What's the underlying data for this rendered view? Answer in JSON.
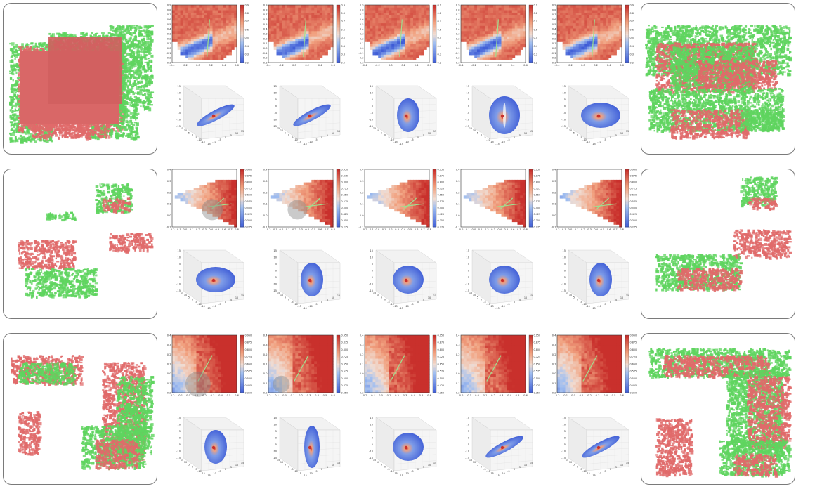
{
  "colors": {
    "red_points": "#e06a6a",
    "green_points": "#5fd45f",
    "heat_high": "#c9302c",
    "heat_mid": "#f1a17f",
    "heat_low": "#3d5bd6",
    "trajectory": "#9fe08f"
  },
  "rows": [
    {
      "cbar_ticks": [
        "0.9",
        "0.8",
        "0.7",
        "0.6",
        "0.5",
        "0.4",
        "0.3",
        "0.2"
      ],
      "y_ticks": [
        "0.9",
        "0.8",
        "0.7",
        "0.6",
        "0.5",
        "0.4",
        "0.3",
        "0.2",
        "0.1",
        "0.0",
        "-0.1",
        "-0.2",
        "-0.3"
      ],
      "x_ticks": [
        "-0.4",
        "-0.2",
        "0.0",
        "0.2",
        "0.4",
        "0.6"
      ],
      "ellipsoids": [
        {
          "shape": "flat-diagonal"
        },
        {
          "shape": "flat-diagonal"
        },
        {
          "shape": "tall-oval"
        },
        {
          "shape": "round-vertical-streak"
        },
        {
          "shape": "wide-oval"
        }
      ]
    },
    {
      "cbar_ticks": [
        "0.950",
        "0.875",
        "0.800",
        "0.725",
        "0.650",
        "0.575",
        "0.500",
        "0.425",
        "0.350",
        "0.275"
      ],
      "y_ticks": [
        "0.4",
        "0.3",
        "0.2",
        "0.1",
        "0.0",
        "-0.1"
      ],
      "x_ticks": [
        "-0.2",
        "-0.1",
        "0.0",
        "0.1",
        "0.2",
        "0.3",
        "0.4",
        "0.5",
        "0.6",
        "0.7",
        "0.8"
      ],
      "ellipsoids": [
        {
          "shape": "wide-oval"
        },
        {
          "shape": "tall-oval"
        },
        {
          "shape": "round"
        },
        {
          "shape": "round"
        },
        {
          "shape": "tall-oval"
        }
      ]
    },
    {
      "cbar_ticks": [
        "0.950",
        "0.875",
        "0.800",
        "0.725",
        "0.650",
        "0.575",
        "0.500",
        "0.425",
        "0.350"
      ],
      "y_ticks": [
        "0.4",
        "0.3",
        "0.2",
        "0.1",
        "0.0",
        "-0.1",
        "-0.2"
      ],
      "x_ticks": [
        "-0.2",
        "-0.1",
        "0.0",
        "0.1",
        "0.2",
        "0.3",
        "0.4",
        "0.5",
        "0.6"
      ],
      "ellipsoids": [
        {
          "shape": "tall-oval"
        },
        {
          "shape": "tall-narrow"
        },
        {
          "shape": "round"
        },
        {
          "shape": "flat-diagonal"
        },
        {
          "shape": "flat-diagonal"
        }
      ]
    }
  ],
  "axis3d": {
    "z_ticks": [
      "15",
      "10",
      "5",
      "0",
      "-5",
      "-10",
      "-15"
    ],
    "x_ticks": [
      "15",
      "10",
      "5",
      "0",
      "-5",
      "-10",
      "-15"
    ],
    "y_ticks": [
      "-15",
      "-10",
      "-5",
      "0",
      "5",
      "10",
      "15"
    ]
  }
}
